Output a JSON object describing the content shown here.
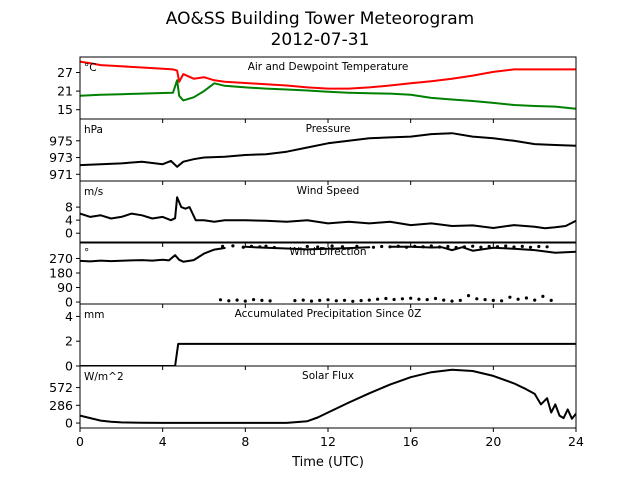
{
  "title_line1": "AO&SS Building Tower Meteorogram",
  "title_line2": "2012-07-31",
  "x_axis": {
    "label": "Time (UTC)",
    "range": [
      0,
      24
    ],
    "ticks": [
      0,
      4,
      8,
      12,
      16,
      20,
      24
    ]
  },
  "chart_data": [
    {
      "type": "line",
      "title": "Air and Dewpoint Temperature",
      "unit": "°C",
      "ylim": [
        12,
        32
      ],
      "yticks": [
        15,
        21,
        27
      ],
      "series": [
        {
          "color": "#ff0000",
          "x": [
            0,
            0.5,
            1,
            2,
            3,
            4,
            4.5,
            4.7,
            4.8,
            5,
            5.5,
            6,
            6.5,
            7,
            8,
            9,
            10,
            11,
            12,
            13,
            14,
            15,
            16,
            17,
            18,
            19,
            20,
            21,
            22,
            23,
            24
          ],
          "y": [
            30.5,
            30,
            29.4,
            29,
            28.6,
            28.2,
            28,
            27.6,
            24,
            26.5,
            25,
            25.5,
            24.5,
            24,
            23.6,
            23.2,
            22.8,
            22.2,
            21.8,
            21.8,
            22.2,
            22.8,
            23.5,
            24.2,
            25,
            26,
            27.2,
            28,
            28,
            28,
            28
          ]
        },
        {
          "color": "#008000",
          "x": [
            0,
            1,
            2,
            3,
            4,
            4.5,
            4.7,
            4.8,
            5,
            5.5,
            6,
            6.5,
            7,
            8,
            9,
            10,
            11,
            12,
            13,
            14,
            15,
            16,
            17,
            18,
            19,
            20,
            21,
            22,
            23,
            24
          ],
          "y": [
            19.5,
            19.8,
            20,
            20.2,
            20.4,
            20.5,
            24.5,
            19.5,
            18,
            19,
            21,
            23.5,
            22.7,
            22.2,
            21.8,
            21.5,
            21.2,
            20.8,
            20.5,
            20.3,
            20.2,
            19.8,
            18.8,
            18.3,
            17.8,
            17.2,
            16.5,
            16.2,
            16,
            15.3
          ]
        }
      ]
    },
    {
      "type": "line",
      "title": "Pressure",
      "unit": "hPa",
      "ylim": [
        970.2,
        977.6
      ],
      "yticks": [
        971,
        973,
        975
      ],
      "series": [
        {
          "color": "#000000",
          "x": [
            0,
            1,
            2,
            3,
            4,
            4.4,
            4.7,
            5,
            5.5,
            6,
            7,
            8,
            9,
            10,
            11,
            12,
            13,
            14,
            15,
            16,
            17,
            18,
            19,
            20,
            21,
            22,
            23,
            24
          ],
          "y": [
            972.1,
            972.2,
            972.3,
            972.5,
            972.2,
            972.6,
            971.9,
            972.5,
            972.8,
            973,
            973.1,
            973.3,
            973.4,
            973.7,
            974.2,
            974.7,
            975,
            975.3,
            975.4,
            975.5,
            975.8,
            975.9,
            975.5,
            975.3,
            975,
            974.6,
            974.5,
            974.4
          ]
        }
      ]
    },
    {
      "type": "line",
      "title": "Wind Speed",
      "unit": "m/s",
      "ylim": [
        -3,
        16
      ],
      "yticks": [
        0,
        4,
        8
      ],
      "series": [
        {
          "color": "#000000",
          "x": [
            0,
            0.5,
            1,
            1.5,
            2,
            2.5,
            3,
            3.5,
            4,
            4.4,
            4.6,
            4.7,
            4.9,
            5.1,
            5.3,
            5.6,
            6,
            6.5,
            7,
            8,
            9,
            10,
            11,
            12,
            13,
            14,
            15,
            16,
            17,
            18,
            19,
            20,
            21,
            22,
            22.5,
            23,
            23.5,
            24
          ],
          "y": [
            6,
            5,
            5.5,
            4.5,
            5,
            6,
            5.5,
            4.5,
            5,
            4,
            4.6,
            11,
            8,
            7.5,
            8,
            4,
            4,
            3.5,
            4,
            4,
            3.8,
            3.5,
            4,
            3,
            3.5,
            3,
            3.5,
            2.5,
            3,
            2.2,
            2.4,
            1.6,
            2.5,
            2,
            1.5,
            1.8,
            2.2,
            3.8
          ]
        }
      ]
    },
    {
      "type": "scatter",
      "title": "Wind Direction",
      "unit": "°",
      "ylim": [
        -12,
        372
      ],
      "yticks": [
        0,
        90,
        180,
        270
      ],
      "series": [
        {
          "color": "#000000",
          "segments": [
            {
              "x": [
                0,
                0.5,
                1,
                1.5,
                2,
                2.5,
                3,
                3.5,
                4,
                4.3,
                4.6,
                4.8,
                5,
                5.5,
                6,
                6.5,
                7
              ],
              "y": [
                255,
                252,
                257,
                254,
                256,
                258,
                260,
                257,
                262,
                258,
                290,
                262,
                250,
                260,
                300,
                325,
                335
              ]
            },
            {
              "x": [
                8,
                9,
                10,
                11,
                12,
                13,
                14
              ],
              "y": [
                342,
                336,
                332,
                326,
                330,
                334,
                340
              ]
            },
            {
              "x": [
                15,
                16,
                17,
                17.5,
                18,
                18.5,
                19,
                20,
                21,
                22,
                23,
                24
              ],
              "y": [
                343,
                342,
                338,
                340,
                322,
                340,
                318,
                336,
                330,
                322,
                305,
                312
              ]
            }
          ],
          "points_x": [
            6.8,
            7.2,
            7.6,
            8,
            8.4,
            8.8,
            9.2,
            10.4,
            10.8,
            11.2,
            11.6,
            12,
            12.4,
            12.8,
            13.2,
            13.6,
            14,
            14.4,
            14.8,
            15.2,
            15.6,
            16,
            16.4,
            16.8,
            17.2,
            17.6,
            18,
            18.4,
            18.8,
            19.2,
            19.6,
            20,
            20.4,
            20.8,
            21.2,
            21.6,
            22,
            22.4,
            22.8,
            6.9,
            7.4,
            7.9,
            8.3,
            8.7,
            9,
            9.4,
            11,
            11.5,
            12.2,
            12.7,
            13.4,
            14.2,
            14.6,
            15,
            15.4,
            15.8,
            16.2,
            16.6,
            17,
            17.4,
            17.8,
            18.2,
            18.6,
            19,
            19.4,
            19.8,
            20.2,
            20.6,
            21,
            21.4,
            21.8,
            22.2,
            22.6
          ],
          "points_y": [
            14,
            8,
            12,
            6,
            15,
            10,
            7,
            9,
            12,
            6,
            10,
            14,
            8,
            11,
            5,
            9,
            12,
            18,
            22,
            16,
            20,
            24,
            18,
            15,
            22,
            12,
            6,
            10,
            40,
            20,
            15,
            10,
            8,
            30,
            18,
            25,
            12,
            35,
            10,
            345,
            348,
            340,
            345,
            342,
            346,
            338,
            344,
            341,
            347,
            343,
            345,
            339,
            344,
            342,
            346,
            340,
            345,
            343,
            347,
            341,
            344,
            338,
            342,
            346,
            340,
            344,
            343,
            347,
            341,
            345,
            339,
            344,
            342
          ]
        }
      ]
    },
    {
      "type": "line",
      "title": "Accumulated Precipitation Since 0Z",
      "unit": "mm",
      "ylim": [
        0,
        5
      ],
      "yticks": [
        0,
        2,
        4
      ],
      "series": [
        {
          "color": "#000000",
          "x": [
            0,
            4.6,
            4.75,
            24
          ],
          "y": [
            0,
            0,
            1.78,
            1.78
          ]
        }
      ]
    },
    {
      "type": "line",
      "title": "Solar Flux",
      "unit": "W/m^2",
      "ylim": [
        -80,
        920
      ],
      "yticks": [
        0,
        286,
        572
      ],
      "series": [
        {
          "color": "#000000",
          "x": [
            0,
            0.5,
            1,
            1.5,
            2,
            3,
            4,
            5,
            6,
            7,
            8,
            9,
            10,
            11,
            11.5,
            12,
            13,
            14,
            15,
            16,
            17,
            18,
            19,
            20,
            21,
            21.5,
            22,
            22.3,
            22.6,
            22.8,
            23,
            23.2,
            23.4,
            23.6,
            23.8,
            24
          ],
          "y": [
            120,
            80,
            40,
            20,
            10,
            5,
            3,
            2,
            2,
            2,
            2,
            2,
            2,
            30,
            90,
            170,
            330,
            480,
            620,
            740,
            820,
            860,
            840,
            760,
            640,
            560,
            470,
            300,
            400,
            170,
            300,
            120,
            80,
            220,
            70,
            150
          ]
        }
      ]
    }
  ]
}
